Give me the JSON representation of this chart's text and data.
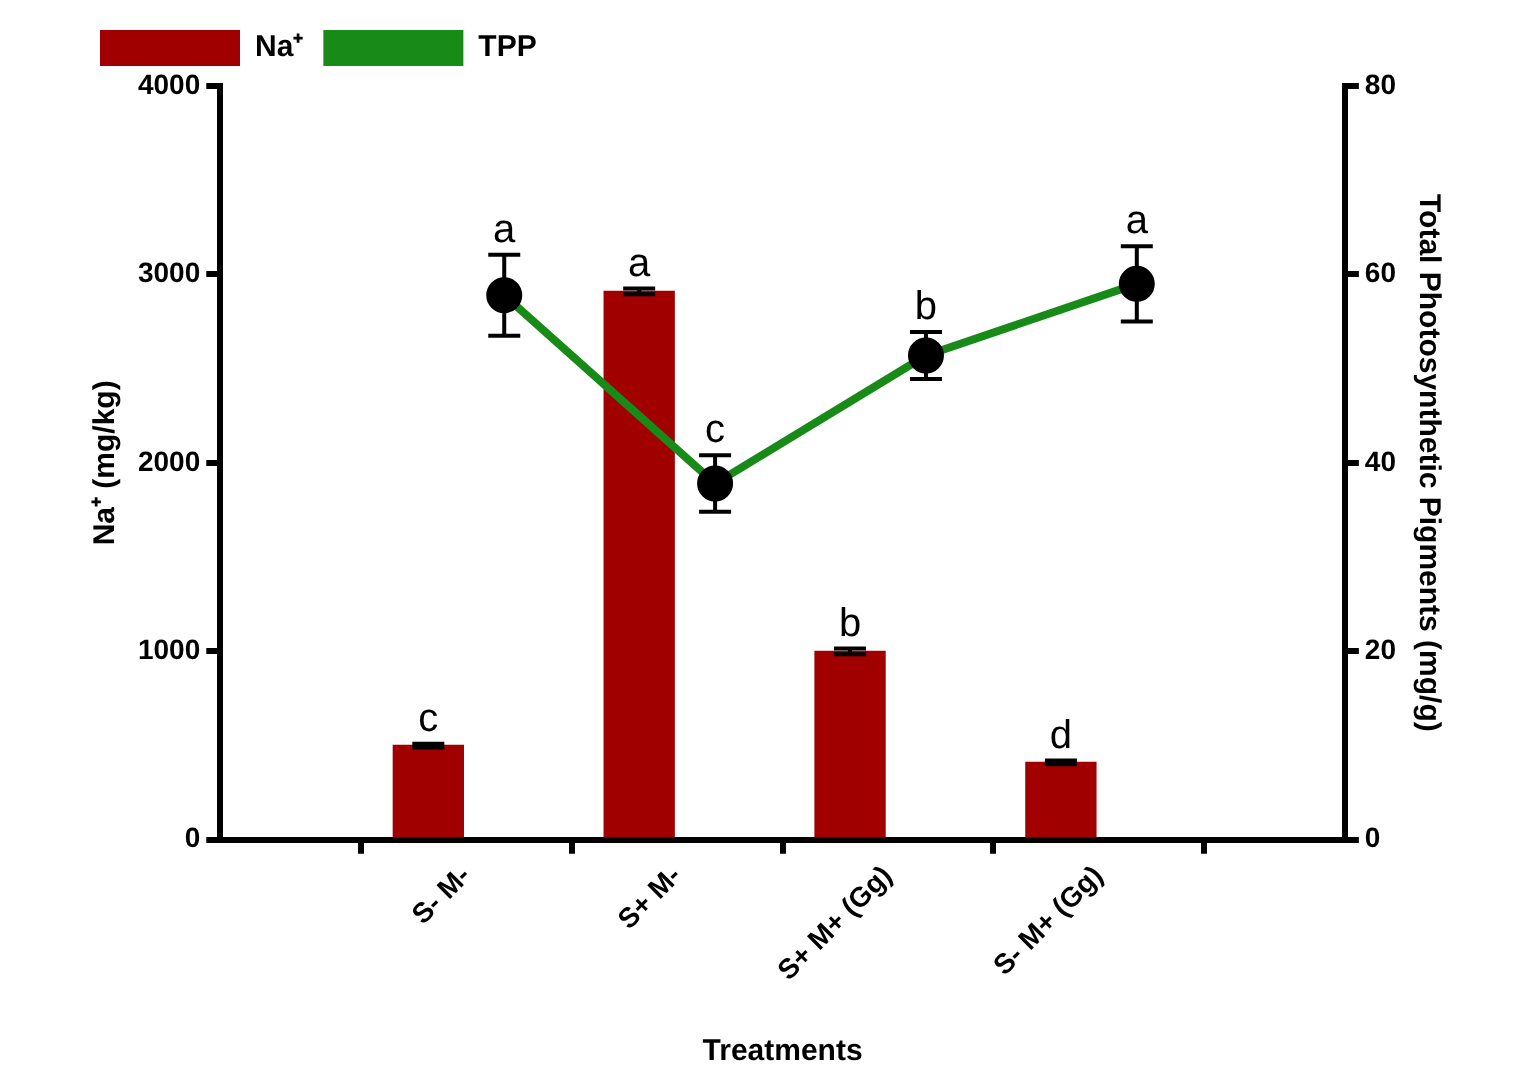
{
  "chart_data": {
    "type": "bar",
    "xlabel": "Treatments",
    "ylabel": "Na⁺ (mg/kg)",
    "y2label": "Total Photosynthetic Pigments (mg/g)",
    "categories": [
      "S- M-",
      "S+ M-",
      "S+ M+ (Gg)",
      "S- M+ (Gg)"
    ],
    "series": [
      {
        "name": "Na⁺",
        "color": "#a00000",
        "values": [
          500,
          2910,
          1000,
          410
        ],
        "errors": [
          10,
          15,
          15,
          10
        ]
      },
      {
        "name": "TPP",
        "type": "line",
        "axis": "y2",
        "color": "#178a17",
        "marker": "circle",
        "line_style": "solid",
        "values": [
          57.8,
          37.8,
          51.4,
          59
        ],
        "errors": [
          4.3,
          3,
          2.5,
          4
        ]
      }
    ],
    "ylim": [
      0,
      4000
    ],
    "yticks": [
      0,
      1000,
      2000,
      3000,
      4000
    ],
    "y2lim": [
      0,
      80
    ],
    "y2ticks": [
      0,
      20,
      40,
      60,
      80
    ],
    "legend": "top left",
    "annotations": [
      {
        "text": "c",
        "x": "S- M-",
        "y": 510
      },
      {
        "text": "a",
        "x": "S+ M-",
        "y": 2925
      },
      {
        "text": "b",
        "x": "S+ M+ (Gg)",
        "y": 1015
      },
      {
        "text": "d",
        "x": "S- M+ (Gg)",
        "y": 420
      },
      "a",
      "c",
      "b",
      "a"
    ]
  }
}
